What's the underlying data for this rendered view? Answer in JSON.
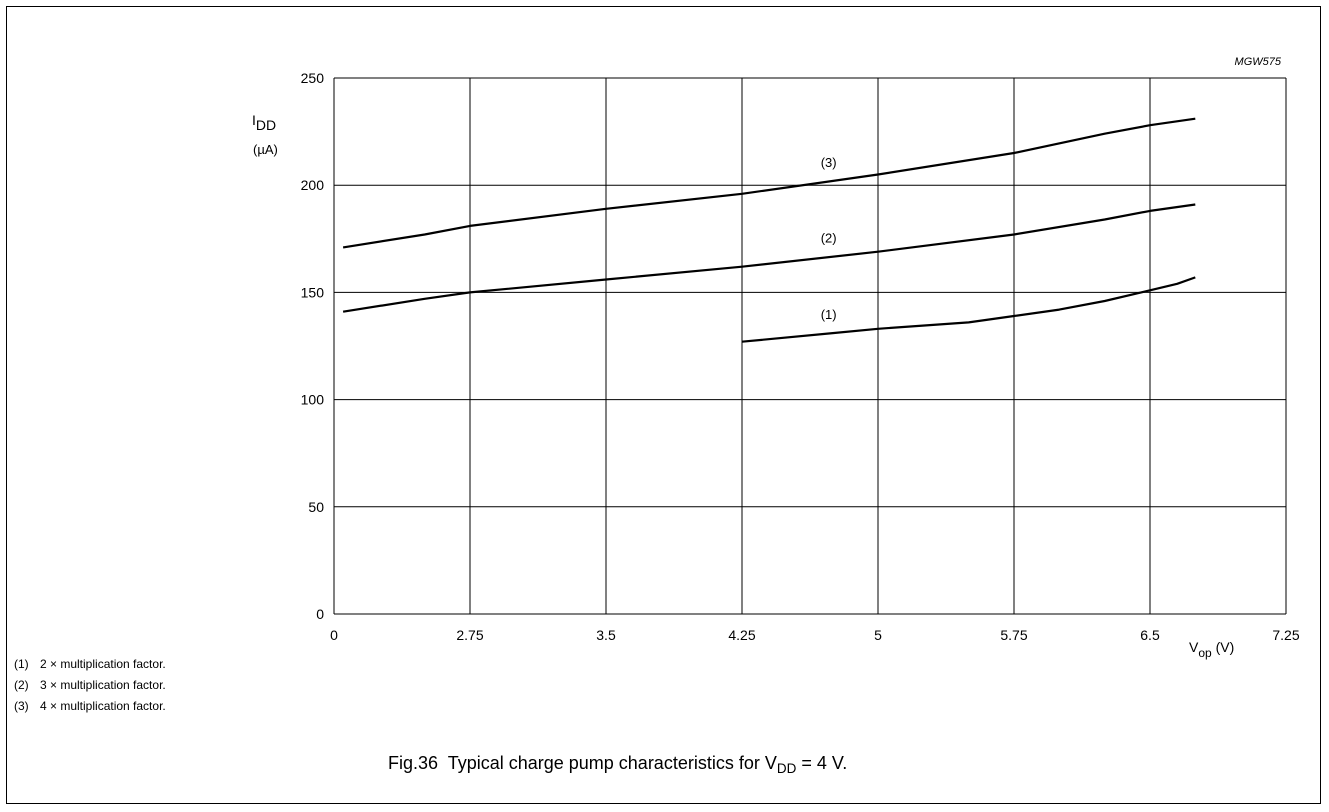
{
  "figure_code": "MGW575",
  "y_axis": {
    "symbol": "I",
    "subscript": "DD",
    "unit": "(µA)"
  },
  "x_axis": {
    "symbol": "V",
    "subscript": "op",
    "unit": "(V)"
  },
  "notes": [
    {
      "num": "(1)",
      "text": "2 × multiplication factor."
    },
    {
      "num": "(2)",
      "text": "3 × multiplication factor."
    },
    {
      "num": "(3)",
      "text": "4 × multiplication factor."
    }
  ],
  "caption": {
    "prefix": "Fig.36  Typical charge pump characteristics for V",
    "subscript": "DD",
    "suffix": " = 4 V."
  },
  "chart_data": {
    "type": "line",
    "x_tick_labels": [
      "0",
      "2.75",
      "3.5",
      "4.25",
      "5",
      "5.75",
      "6.5",
      "7.25"
    ],
    "y_tick_labels": [
      "0",
      "50",
      "100",
      "150",
      "200",
      "250"
    ],
    "xlim": [
      2,
      7.25
    ],
    "ylim": [
      0,
      250
    ],
    "grid": true,
    "series": [
      {
        "name": "(1)",
        "x": [
          4.25,
          4.75,
          5.0,
          5.5,
          5.75,
          6.0,
          6.25,
          6.5,
          6.65,
          6.75
        ],
        "y": [
          127,
          131,
          133,
          136,
          139,
          142,
          146,
          151,
          154,
          157
        ]
      },
      {
        "name": "(2)",
        "x": [
          2.05,
          2.5,
          2.75,
          3.5,
          4.25,
          5.0,
          5.75,
          6.25,
          6.5,
          6.75
        ],
        "y": [
          141,
          147,
          150,
          156,
          162,
          169,
          177,
          184,
          188,
          191
        ]
      },
      {
        "name": "(3)",
        "x": [
          2.05,
          2.5,
          2.75,
          3.5,
          4.25,
          5.0,
          5.75,
          6.25,
          6.5,
          6.75
        ],
        "y": [
          171,
          177,
          181,
          189,
          196,
          205,
          215,
          224,
          228,
          231
        ]
      }
    ]
  }
}
